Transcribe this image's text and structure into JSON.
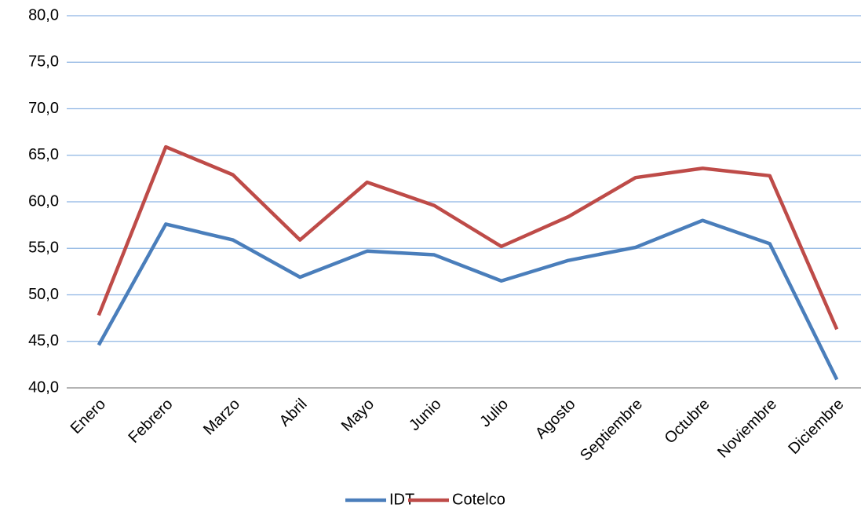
{
  "chart_data": {
    "type": "line",
    "categories": [
      "Enero",
      "Febrero",
      "Marzo",
      "Abril",
      "Mayo",
      "Junio",
      "Julio",
      "Agosto",
      "Septiembre",
      "Octubre",
      "Noviembre",
      "Diciembre"
    ],
    "series": [
      {
        "name": "IDT",
        "color": "#4a7ebb",
        "values": [
          44.6,
          57.6,
          55.9,
          51.9,
          54.7,
          54.3,
          51.5,
          53.7,
          55.1,
          58.0,
          55.5,
          40.9
        ]
      },
      {
        "name": "Cotelco",
        "color": "#be4b48",
        "values": [
          47.8,
          65.9,
          62.9,
          55.9,
          62.1,
          59.6,
          55.2,
          58.4,
          62.6,
          63.6,
          62.8,
          46.3
        ]
      }
    ],
    "ylim": [
      40,
      80
    ],
    "yticks": [
      {
        "value": 40,
        "label": "40,0"
      },
      {
        "value": 45,
        "label": "45,0"
      },
      {
        "value": 50,
        "label": "50,0"
      },
      {
        "value": 55,
        "label": "55,0"
      },
      {
        "value": 60,
        "label": "60,0"
      },
      {
        "value": 65,
        "label": "65,0"
      },
      {
        "value": 70,
        "label": "70,0"
      },
      {
        "value": 75,
        "label": "75,0"
      },
      {
        "value": 80,
        "label": "80,0"
      }
    ],
    "grid": true,
    "legend": "bottom"
  }
}
